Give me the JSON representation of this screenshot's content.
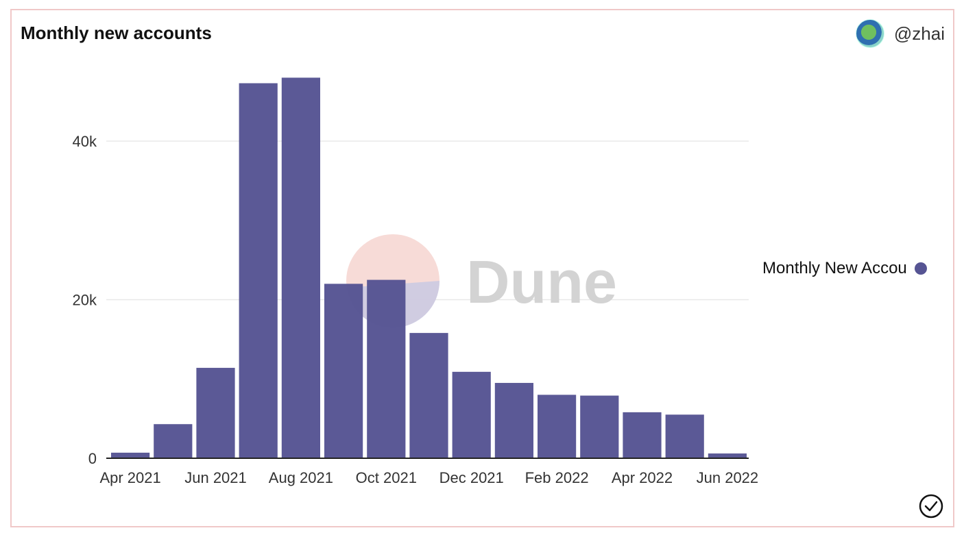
{
  "header": {
    "title": "Monthly new accounts",
    "author": "@zhai"
  },
  "legend": {
    "label": "Monthly New Accounts",
    "color": "#565493"
  },
  "watermark": {
    "text": "Dune"
  },
  "chart_data": {
    "type": "bar",
    "title": "Monthly new accounts",
    "xlabel": "",
    "ylabel": "",
    "categories": [
      "Apr 2021",
      "May 2021",
      "Jun 2021",
      "Jul 2021",
      "Aug 2021",
      "Sep 2021",
      "Oct 2021",
      "Nov 2021",
      "Dec 2021",
      "Jan 2022",
      "Feb 2022",
      "Mar 2022",
      "Apr 2022",
      "May 2022",
      "Jun 2022"
    ],
    "x_tick_labels": [
      "Apr 2021",
      "Jun 2021",
      "Aug 2021",
      "Oct 2021",
      "Dec 2021",
      "Feb 2022",
      "Apr 2022",
      "Jun 2022"
    ],
    "y_tick_labels": [
      "0",
      "20k",
      "40k"
    ],
    "y_ticks": [
      0,
      20000,
      40000
    ],
    "series": [
      {
        "name": "Monthly New Accounts",
        "color": "#565493",
        "values": [
          700,
          4300,
          11400,
          47300,
          48000,
          22000,
          22500,
          15800,
          10900,
          9500,
          8000,
          7900,
          5800,
          5500,
          600
        ]
      }
    ],
    "ylim": [
      0,
      48000
    ],
    "grid": true,
    "legend_position": "right"
  }
}
